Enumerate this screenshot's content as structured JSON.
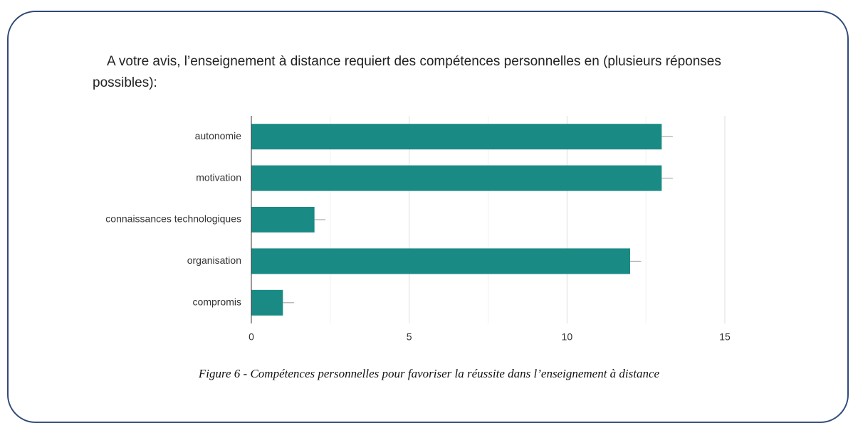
{
  "chart_data": {
    "type": "bar",
    "orientation": "horizontal",
    "title": "A votre avis, l’enseignement à distance requiert des compétences personnelles en (plusieurs réponses possibles):",
    "categories": [
      "autonomie",
      "motivation",
      "connaissances technologiques",
      "organisation",
      "compromis"
    ],
    "values": [
      13,
      13,
      2,
      12,
      1
    ],
    "errors": [
      0.35,
      0.35,
      0.35,
      0.35,
      0.35
    ],
    "color": "#1a8a85",
    "xlim": [
      0,
      15
    ],
    "xticks": [
      0,
      5,
      10,
      15
    ],
    "minor_xticks": [
      2.5,
      7.5,
      12.5
    ],
    "grid": true,
    "caption": "Figure 6 - Compétences personnelles pour favoriser la réussite dans l’enseignement à distance"
  }
}
